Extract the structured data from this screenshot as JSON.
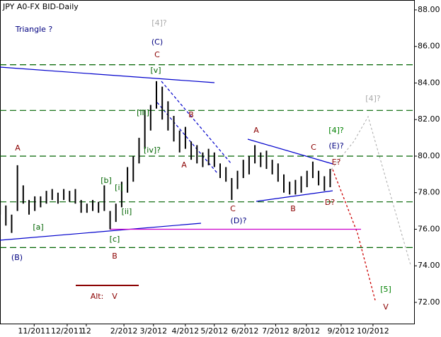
{
  "chart_data": {
    "type": "ohlc",
    "title": "JPY A0-FX BID-Daily",
    "series": [
      {
        "name": "JPY A0-FX BID",
        "color": "#000000",
        "highs": [
          77.6,
          77.3,
          76.8,
          79.5,
          78.4,
          77.6,
          77.8,
          77.8,
          78.1,
          78.2,
          78.0,
          78.2,
          78.1,
          78.2,
          77.6,
          77.4,
          77.6,
          77.5,
          78.4,
          77.0,
          77.4,
          78.6,
          79.4,
          80.0,
          81.0,
          82.5,
          82.8,
          84.1,
          83.8,
          83.0,
          82.2,
          81.4,
          81.6,
          80.8,
          80.6,
          80.2,
          80.4,
          80.2,
          79.6,
          79.4,
          78.8,
          79.2,
          79.8,
          80.0,
          80.6,
          80.2,
          80.3,
          79.8,
          79.6,
          79.0,
          78.6,
          78.7,
          78.9,
          79.2,
          79.7,
          79.2,
          78.9,
          79.3
        ],
        "lows": [
          76.8,
          76.2,
          75.8,
          77.0,
          77.4,
          76.8,
          77.0,
          77.2,
          77.4,
          77.6,
          77.4,
          77.6,
          77.5,
          77.4,
          76.9,
          76.9,
          77.0,
          76.9,
          77.0,
          76.0,
          76.4,
          77.2,
          78.0,
          78.6,
          79.6,
          80.4,
          81.4,
          82.6,
          82.0,
          81.4,
          80.8,
          80.2,
          80.4,
          79.8,
          79.6,
          79.4,
          79.5,
          79.4,
          78.8,
          78.6,
          77.6,
          78.2,
          78.8,
          79.0,
          79.6,
          79.4,
          79.3,
          79.0,
          78.6,
          78.0,
          77.9,
          77.9,
          78.0,
          78.3,
          78.8,
          78.4,
          78.1,
          78.3
        ]
      }
    ],
    "xlim": [
      0,
      71.5
    ],
    "xticks": [
      {
        "value": 5.9,
        "label": "11/2011"
      },
      {
        "value": 11.6,
        "label": "12/2011"
      },
      {
        "value": 14.9,
        "label": "12"
      },
      {
        "value": 21.4,
        "label": "2/2012"
      },
      {
        "value": 26.5,
        "label": "3/2012"
      },
      {
        "value": 32.0,
        "label": "4/2012"
      },
      {
        "value": 37.0,
        "label": "5/2012"
      },
      {
        "value": 42.3,
        "label": "6/2012"
      },
      {
        "value": 47.6,
        "label": "7/2012"
      },
      {
        "value": 52.9,
        "label": "8/2012"
      },
      {
        "value": 58.9,
        "label": "9/2012"
      },
      {
        "value": 64.4,
        "label": "10/2012"
      }
    ],
    "ylim": [
      70.84,
      88.54
    ],
    "yticks": [
      {
        "value": 88,
        "label": "88.00"
      },
      {
        "value": 86,
        "label": "86.00"
      },
      {
        "value": 84,
        "label": "84.00"
      },
      {
        "value": 82,
        "label": "82.00"
      },
      {
        "value": 80,
        "label": "80.00"
      },
      {
        "value": 78,
        "label": "78.00"
      },
      {
        "value": 76,
        "label": "76.00"
      },
      {
        "value": 74,
        "label": "74.00"
      },
      {
        "value": 72,
        "label": "72.00"
      }
    ],
    "levels": [
      85,
      82.5,
      80,
      77.5,
      75
    ],
    "level_color": "#006400",
    "support_level": 76,
    "support_color": "#cc00cc",
    "annotations": [
      {
        "text": "Triangle ?",
        "color": "#000080"
      },
      {
        "text": "[4]?",
        "color": "#aaaaaa"
      },
      {
        "text": "(C)",
        "color": "#000080"
      },
      {
        "text": "C",
        "color": "#8b0000"
      },
      {
        "text": "[v]",
        "color": "#006400"
      },
      {
        "text": "[iii]",
        "color": "#006400"
      },
      {
        "text": "[iv]?",
        "color": "#006400"
      },
      {
        "text": "B",
        "color": "#8b0000"
      },
      {
        "text": "A",
        "color": "#8b0000"
      },
      {
        "text": "A",
        "color": "#8b0000"
      },
      {
        "text": "[b]",
        "color": "#006400"
      },
      {
        "text": "[i]",
        "color": "#006400"
      },
      {
        "text": "[ii]",
        "color": "#006400"
      },
      {
        "text": "[a]",
        "color": "#006400"
      },
      {
        "text": "[c]",
        "color": "#006400"
      },
      {
        "text": "B",
        "color": "#8b0000"
      },
      {
        "text": "(B)",
        "color": "#000080"
      },
      {
        "text": "C",
        "color": "#8b0000"
      },
      {
        "text": "(D)?",
        "color": "#000080"
      },
      {
        "text": "A",
        "color": "#8b0000"
      },
      {
        "text": "B",
        "color": "#8b0000"
      },
      {
        "text": "C",
        "color": "#8b0000"
      },
      {
        "text": "[4]?",
        "color": "#008000"
      },
      {
        "text": "(E)?",
        "color": "#000080"
      },
      {
        "text": "E?",
        "color": "#8b0000"
      },
      {
        "text": "D?",
        "color": "#8b0000"
      },
      {
        "text": "[4]?",
        "color": "#aaaaaa"
      },
      {
        "text": "Alt:",
        "color": "#8b0000"
      },
      {
        "text": "V",
        "color": "#8b0000"
      },
      {
        "text": "[5]",
        "color": "#008000"
      },
      {
        "text": "V",
        "color": "#8b0000"
      }
    ]
  }
}
